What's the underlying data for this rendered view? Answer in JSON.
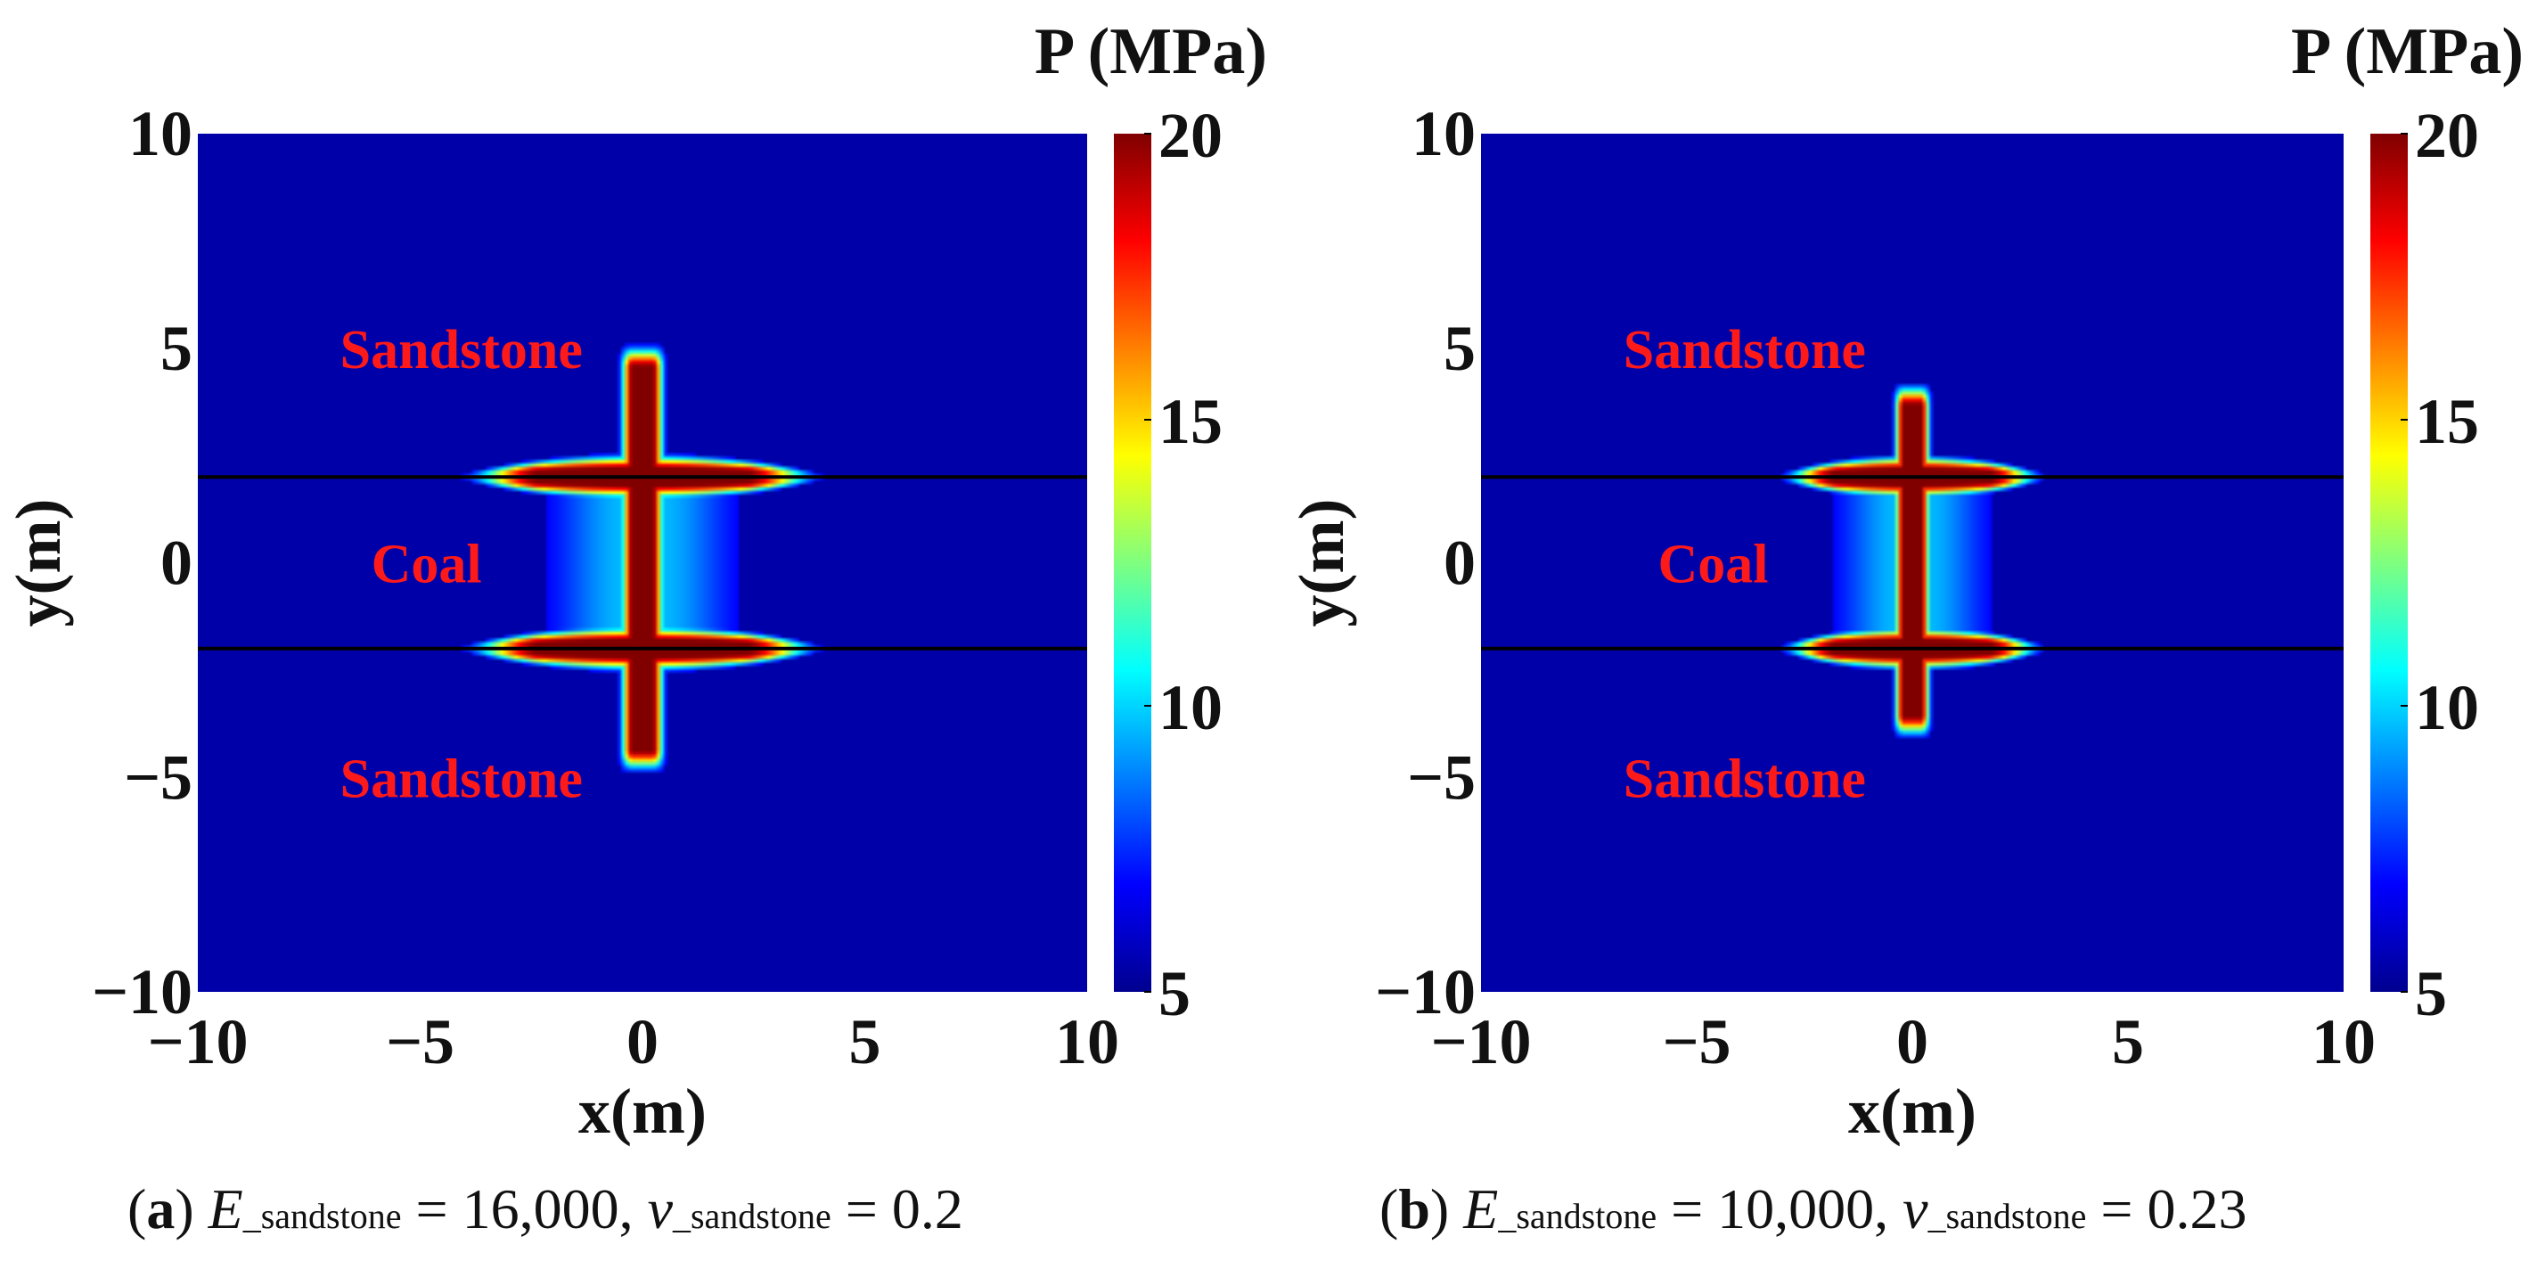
{
  "chart_data": [
    {
      "type": "heatmap",
      "id": "a",
      "caption": {
        "letter": "a",
        "e_symbol": "E",
        "e_subscript": "_sandstone",
        "e_value": "= 16,000,",
        "v_symbol": "v",
        "v_subscript": "_sandstone",
        "v_value": "= 0.2"
      },
      "xlabel": "x(m)",
      "ylabel": "y(m)",
      "xlim": [
        -10,
        10
      ],
      "ylim": [
        -10,
        10
      ],
      "xticks": [
        "−10",
        "−5",
        "0",
        "5",
        "10"
      ],
      "yticks": [
        "10",
        "5",
        "0",
        "−5",
        "−10"
      ],
      "colorbar": {
        "title": "P (MPa)",
        "min": 5,
        "max": 20,
        "ticks": [
          "20",
          "15",
          "10",
          "5"
        ],
        "colormap": "jet"
      },
      "background_pressure": 5,
      "layer_boundaries_y": [
        2,
        -2
      ],
      "regions": [
        {
          "label": "Sandstone",
          "x": -6.8,
          "y": 5
        },
        {
          "label": "Coal",
          "x": -6.1,
          "y": 0
        },
        {
          "label": "Sandstone",
          "x": -6.8,
          "y": -5
        }
      ],
      "fracture": {
        "x_center": 0,
        "half_width": 0.42,
        "y_top": 4.8,
        "y_bottom": -4.6,
        "peak_pressure": 20
      },
      "interface_spread": {
        "half_length": 4.2,
        "half_thickness": 0.32,
        "peak_pressure": 20
      }
    },
    {
      "type": "heatmap",
      "id": "b",
      "caption": {
        "letter": "b",
        "e_symbol": "E",
        "e_subscript": "_sandstone",
        "e_value": "= 10,000,",
        "v_symbol": "v",
        "v_subscript": "_sandstone",
        "v_value": "= 0.23"
      },
      "xlabel": "x(m)",
      "ylabel": "y(m)",
      "xlim": [
        -10,
        10
      ],
      "ylim": [
        -10,
        10
      ],
      "xticks": [
        "−10",
        "−5",
        "0",
        "5",
        "10"
      ],
      "yticks": [
        "10",
        "5",
        "0",
        "−5",
        "−10"
      ],
      "colorbar": {
        "title": "P (MPa)",
        "min": 5,
        "max": 20,
        "ticks": [
          "20",
          "15",
          "10",
          "5"
        ],
        "colormap": "jet"
      },
      "background_pressure": 5,
      "layer_boundaries_y": [
        2,
        -2
      ],
      "regions": [
        {
          "label": "Sandstone",
          "x": -6.7,
          "y": 5
        },
        {
          "label": "Coal",
          "x": -5.9,
          "y": 0
        },
        {
          "label": "Sandstone",
          "x": -6.7,
          "y": -5
        }
      ],
      "fracture": {
        "x_center": 0,
        "half_width": 0.36,
        "y_top": 3.9,
        "y_bottom": -3.8,
        "peak_pressure": 20
      },
      "interface_spread": {
        "half_length": 3.2,
        "half_thickness": 0.3,
        "peak_pressure": 20
      }
    }
  ]
}
